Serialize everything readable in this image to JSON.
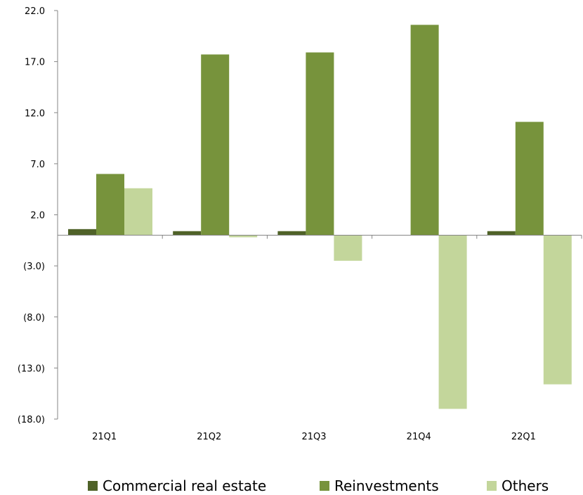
{
  "chart_data": {
    "type": "bar",
    "title": "",
    "xlabel": "",
    "ylabel": "",
    "categories": [
      "21Q1",
      "21Q2",
      "21Q3",
      "21Q4",
      "22Q1"
    ],
    "series": [
      {
        "name": "Commercial real estate",
        "values": [
          0.6,
          0.4,
          0.4,
          0.0,
          0.4
        ]
      },
      {
        "name": "Reinvestments",
        "values": [
          6.0,
          17.7,
          17.9,
          20.6,
          11.1
        ]
      },
      {
        "name": "Others",
        "values": [
          4.6,
          -0.2,
          -2.5,
          -17.0,
          -14.6
        ]
      }
    ],
    "ylim": [
      -18.0,
      22.0
    ],
    "yticks": [
      22.0,
      17.0,
      12.0,
      7.0,
      2.0,
      -3.0,
      -8.0,
      -13.0,
      -18.0
    ],
    "ytick_labels": [
      "22.0",
      "17.0",
      "12.0",
      "7.0",
      "2.0",
      "(3.0)",
      "(8.0)",
      "(13.0)",
      "(18.0)"
    ],
    "negative_tick_color": "#ff0000",
    "positive_tick_color": "#000000",
    "colors": [
      "#4f6228",
      "#77933c",
      "#c3d69b"
    ],
    "grid": false,
    "legend_position": "bottom"
  }
}
